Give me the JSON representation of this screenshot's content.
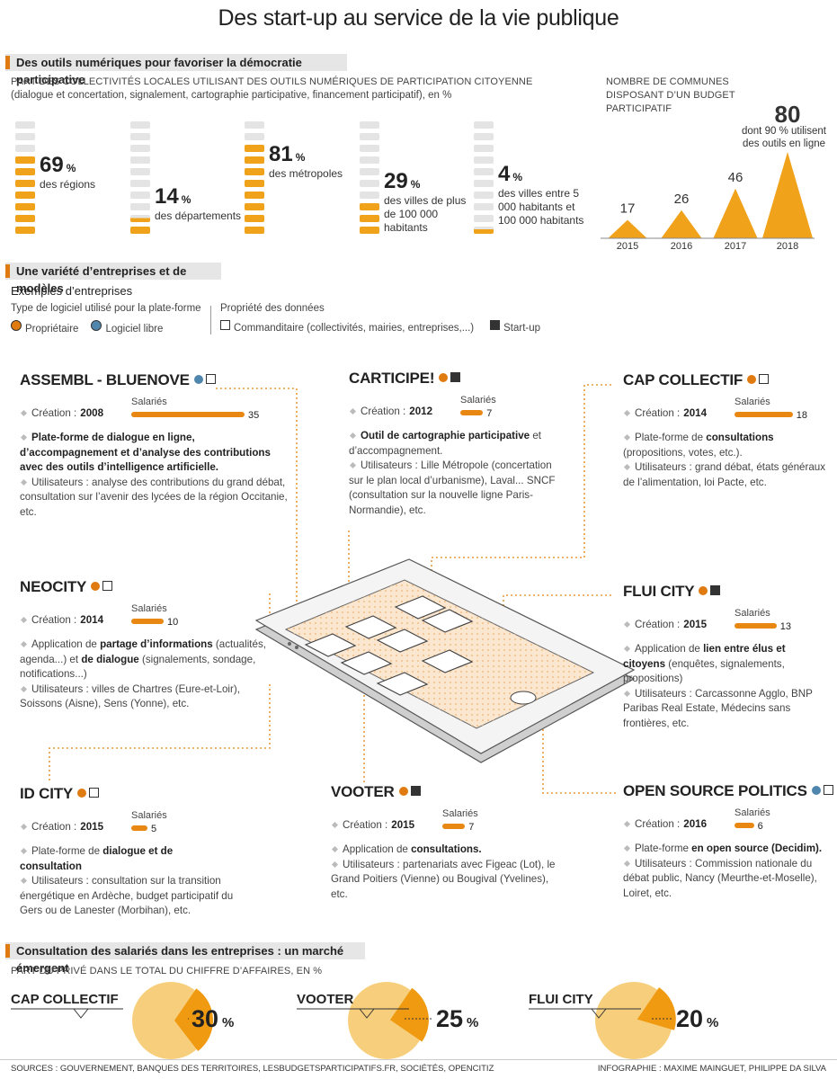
{
  "title": "Des start-up au service de la vie publique",
  "section1": {
    "heading": "Des outils numériques pour favoriser la démocratie participative",
    "subtitle": "PART DES COLLECTIVITÉS LOCALES UTILISANT DES OUTILS NUMÉRIQUES DE PARTICIPATION CITOYENNE",
    "subtitle_note": "(dialogue et concertation, signalement, cartographie participative, financement participatif), en %",
    "unit": "%",
    "stacks": [
      {
        "value": 69,
        "label": "des régions"
      },
      {
        "value": 14,
        "label": "des départements"
      },
      {
        "value": 81,
        "label": "des métropoles"
      },
      {
        "value": 29,
        "label": "des villes de plus de 100 000 habitants"
      },
      {
        "value": 4,
        "label": "des villes entre 5 000 habitants et 100 000 habitants"
      }
    ],
    "budget": {
      "title": "NOMBRE DE COMMUNES DISPOSANT D’UN BUDGET PARTICIPATIF",
      "note": "dont 90 % utilisent des outils en ligne",
      "categories": [
        "2015",
        "2016",
        "2017",
        "2018"
      ],
      "values": [
        17,
        26,
        46,
        80
      ],
      "color": "#f0a21a"
    }
  },
  "section2": {
    "heading": "Une variété d’entreprises et de modèles",
    "subheading": "Exemples d’entreprises",
    "software_title": "Type de logiciel utilisé pour la plate-forme",
    "software": [
      {
        "label": "Propriétaire",
        "color": "#e07b12"
      },
      {
        "label": "Logiciel libre",
        "color": "#4f86ad"
      }
    ],
    "data_title": "Propriété des données",
    "data_owner": [
      {
        "label": "Commanditaire (collectivités, mairies, entreprises,...)",
        "color": "#ffffff"
      },
      {
        "label": "Start-up",
        "color": "#333333"
      }
    ],
    "creation_label": "Création :",
    "employees_label": "Salariés",
    "companies": [
      {
        "name": "ASSEMBL - BLUENOVE",
        "software": 1,
        "data_owner": 0,
        "year": "2008",
        "employees": 35,
        "desc": [
          {
            "t": "Plate-forme de dialogue en ligne, d’accompagnement et d’analyse des contributions avec des outils d’intelligence artificielle.",
            "b": true
          }
        ],
        "users": "Utilisateurs : analyse des contributions du grand débat, consultation sur l’avenir des lycées de la région Occitanie, etc."
      },
      {
        "name": "CARTICIPE!",
        "software": 0,
        "data_owner": 1,
        "year": "2012",
        "employees": 7,
        "desc": [
          {
            "t": "Outil de cartographie participative",
            "b": true
          },
          {
            "t": " et d’accompagnement.",
            "b": false
          }
        ],
        "users": "Utilisateurs : Lille Métropole (concertation sur le plan local d’urbanisme), Laval... SNCF (consultation sur la nouvelle ligne Paris-Normandie), etc."
      },
      {
        "name": "CAP COLLECTIF",
        "software": 0,
        "data_owner": 0,
        "year": "2014",
        "employees": 18,
        "desc": [
          {
            "t": "Plate-forme de ",
            "b": false
          },
          {
            "t": "consultations",
            "b": true
          },
          {
            "t": " (propositions, votes, etc.).",
            "b": false
          }
        ],
        "users": "Utilisateurs : grand débat, états généraux de l’alimentation, loi Pacte, etc."
      },
      {
        "name": "NEOCITY",
        "software": 0,
        "data_owner": 0,
        "year": "2014",
        "employees": 10,
        "desc": [
          {
            "t": "Application de ",
            "b": false
          },
          {
            "t": "partage d’informations",
            "b": true
          },
          {
            "t": " (actualités, agenda...) et ",
            "b": false
          },
          {
            "t": "de dialogue",
            "b": true
          },
          {
            "t": " (signalements, sondage, notifications...)",
            "b": false
          }
        ],
        "users": "Utilisateurs : villes de Chartres (Eure-et-Loir), Soissons (Aisne), Sens (Yonne), etc."
      },
      {
        "name": "FLUI CITY",
        "software": 0,
        "data_owner": 1,
        "year": "2015",
        "employees": 13,
        "desc": [
          {
            "t": "Application de ",
            "b": false
          },
          {
            "t": "lien entre élus et citoyens",
            "b": true
          },
          {
            "t": " (enquêtes, signalements, propositions)",
            "b": false
          }
        ],
        "users": "Utilisateurs : Carcassonne Agglo, BNP Paribas Real Estate, Médecins sans frontières, etc."
      },
      {
        "name": "ID CITY",
        "software": 0,
        "data_owner": 0,
        "year": "2015",
        "employees": 5,
        "desc": [
          {
            "t": "Plate-forme de ",
            "b": false
          },
          {
            "t": "dialogue et de consultation",
            "b": true
          }
        ],
        "users": "Utilisateurs : consultation sur la transition énergétique en Ardèche, budget participatif du Gers ou de Lanester (Morbihan), etc."
      },
      {
        "name": "VOOTER",
        "software": 0,
        "data_owner": 1,
        "year": "2015",
        "employees": 7,
        "desc": [
          {
            "t": "Application de ",
            "b": false
          },
          {
            "t": "consultations.",
            "b": true
          }
        ],
        "users": "Utilisateurs : partenariats avec Figeac (Lot), le Grand Poitiers (Vienne) ou Bougival (Yvelines), etc."
      },
      {
        "name": "OPEN SOURCE POLITICS",
        "software": 1,
        "data_owner": 0,
        "year": "2016",
        "employees": 6,
        "desc": [
          {
            "t": "Plate-forme ",
            "b": false
          },
          {
            "t": "en open source (Decidim).",
            "b": true
          }
        ],
        "users": "Utilisateurs : Commission nationale du débat public, Nancy (Meurthe-et-Moselle), Loiret, etc."
      }
    ]
  },
  "section3": {
    "heading": "Consultation des salariés dans les entreprises : un marché émergent",
    "subtitle": "PART DU PRIVÉ DANS LE TOTAL DU CHIFFRE D’AFFAIRES, EN %",
    "unit": "%",
    "pies": [
      {
        "name": "CAP COLLECTIF",
        "value": 30
      },
      {
        "name": "VOOTER",
        "value": 25
      },
      {
        "name": "FLUI CITY",
        "value": 20
      }
    ]
  },
  "footer": {
    "sources": "SOURCES : GOUVERNEMENT, BANQUES DES TERRITOIRES, LESBUDGETSPARTICIPATIFS.FR, SOCIÉTÉS, OPENCITIZ",
    "credits": "INFOGRAPHIE : MAXIME MAINGUET, PHILIPPE DA SILVA"
  }
}
